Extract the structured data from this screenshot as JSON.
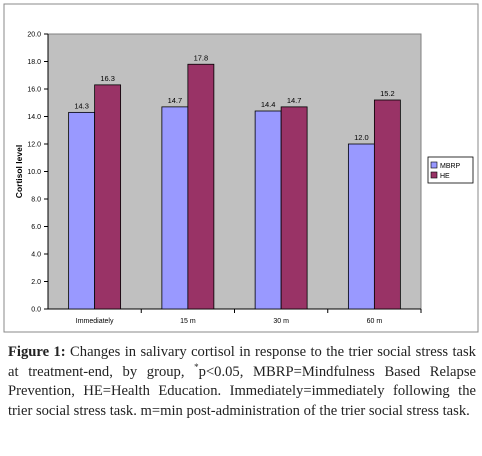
{
  "chart_data": {
    "type": "bar",
    "categories": [
      "Immediately",
      "15 m",
      "30 m",
      "60 m"
    ],
    "series": [
      {
        "name": "MBRP",
        "values": [
          14.3,
          14.7,
          14.4,
          12.0
        ],
        "labels": [
          "14.3",
          "14.7",
          "14.4",
          "12.0"
        ],
        "color": "#9999ff"
      },
      {
        "name": "HE",
        "values": [
          16.3,
          17.8,
          14.7,
          15.2
        ],
        "labels": [
          "16.3",
          "17.8",
          "14.7",
          "15.2"
        ],
        "color": "#993366"
      }
    ],
    "ylabel": "Cortisol level",
    "xlabel": "",
    "ylim": [
      0,
      20
    ],
    "yticks": [
      "0.0",
      "2.0",
      "4.0",
      "6.0",
      "8.0",
      "10.0",
      "12.0",
      "14.0",
      "16.0",
      "18.0",
      "20.0"
    ],
    "plot_background": "#c0c0c0",
    "gridlines": false,
    "legend_position": "right"
  },
  "caption": {
    "label": "Figure 1:",
    "text_part1": " Changes in salivary cortisol in response to the trier social stress task at treatment-end, by group, ",
    "superscript": "*",
    "text_part2": "p<0.05, MBRP=Mindfulness Based Relapse Prevention, HE=Health Education. Immediately=immediately following the trier social stress task. m=min post-administration of the trier social stress task."
  }
}
